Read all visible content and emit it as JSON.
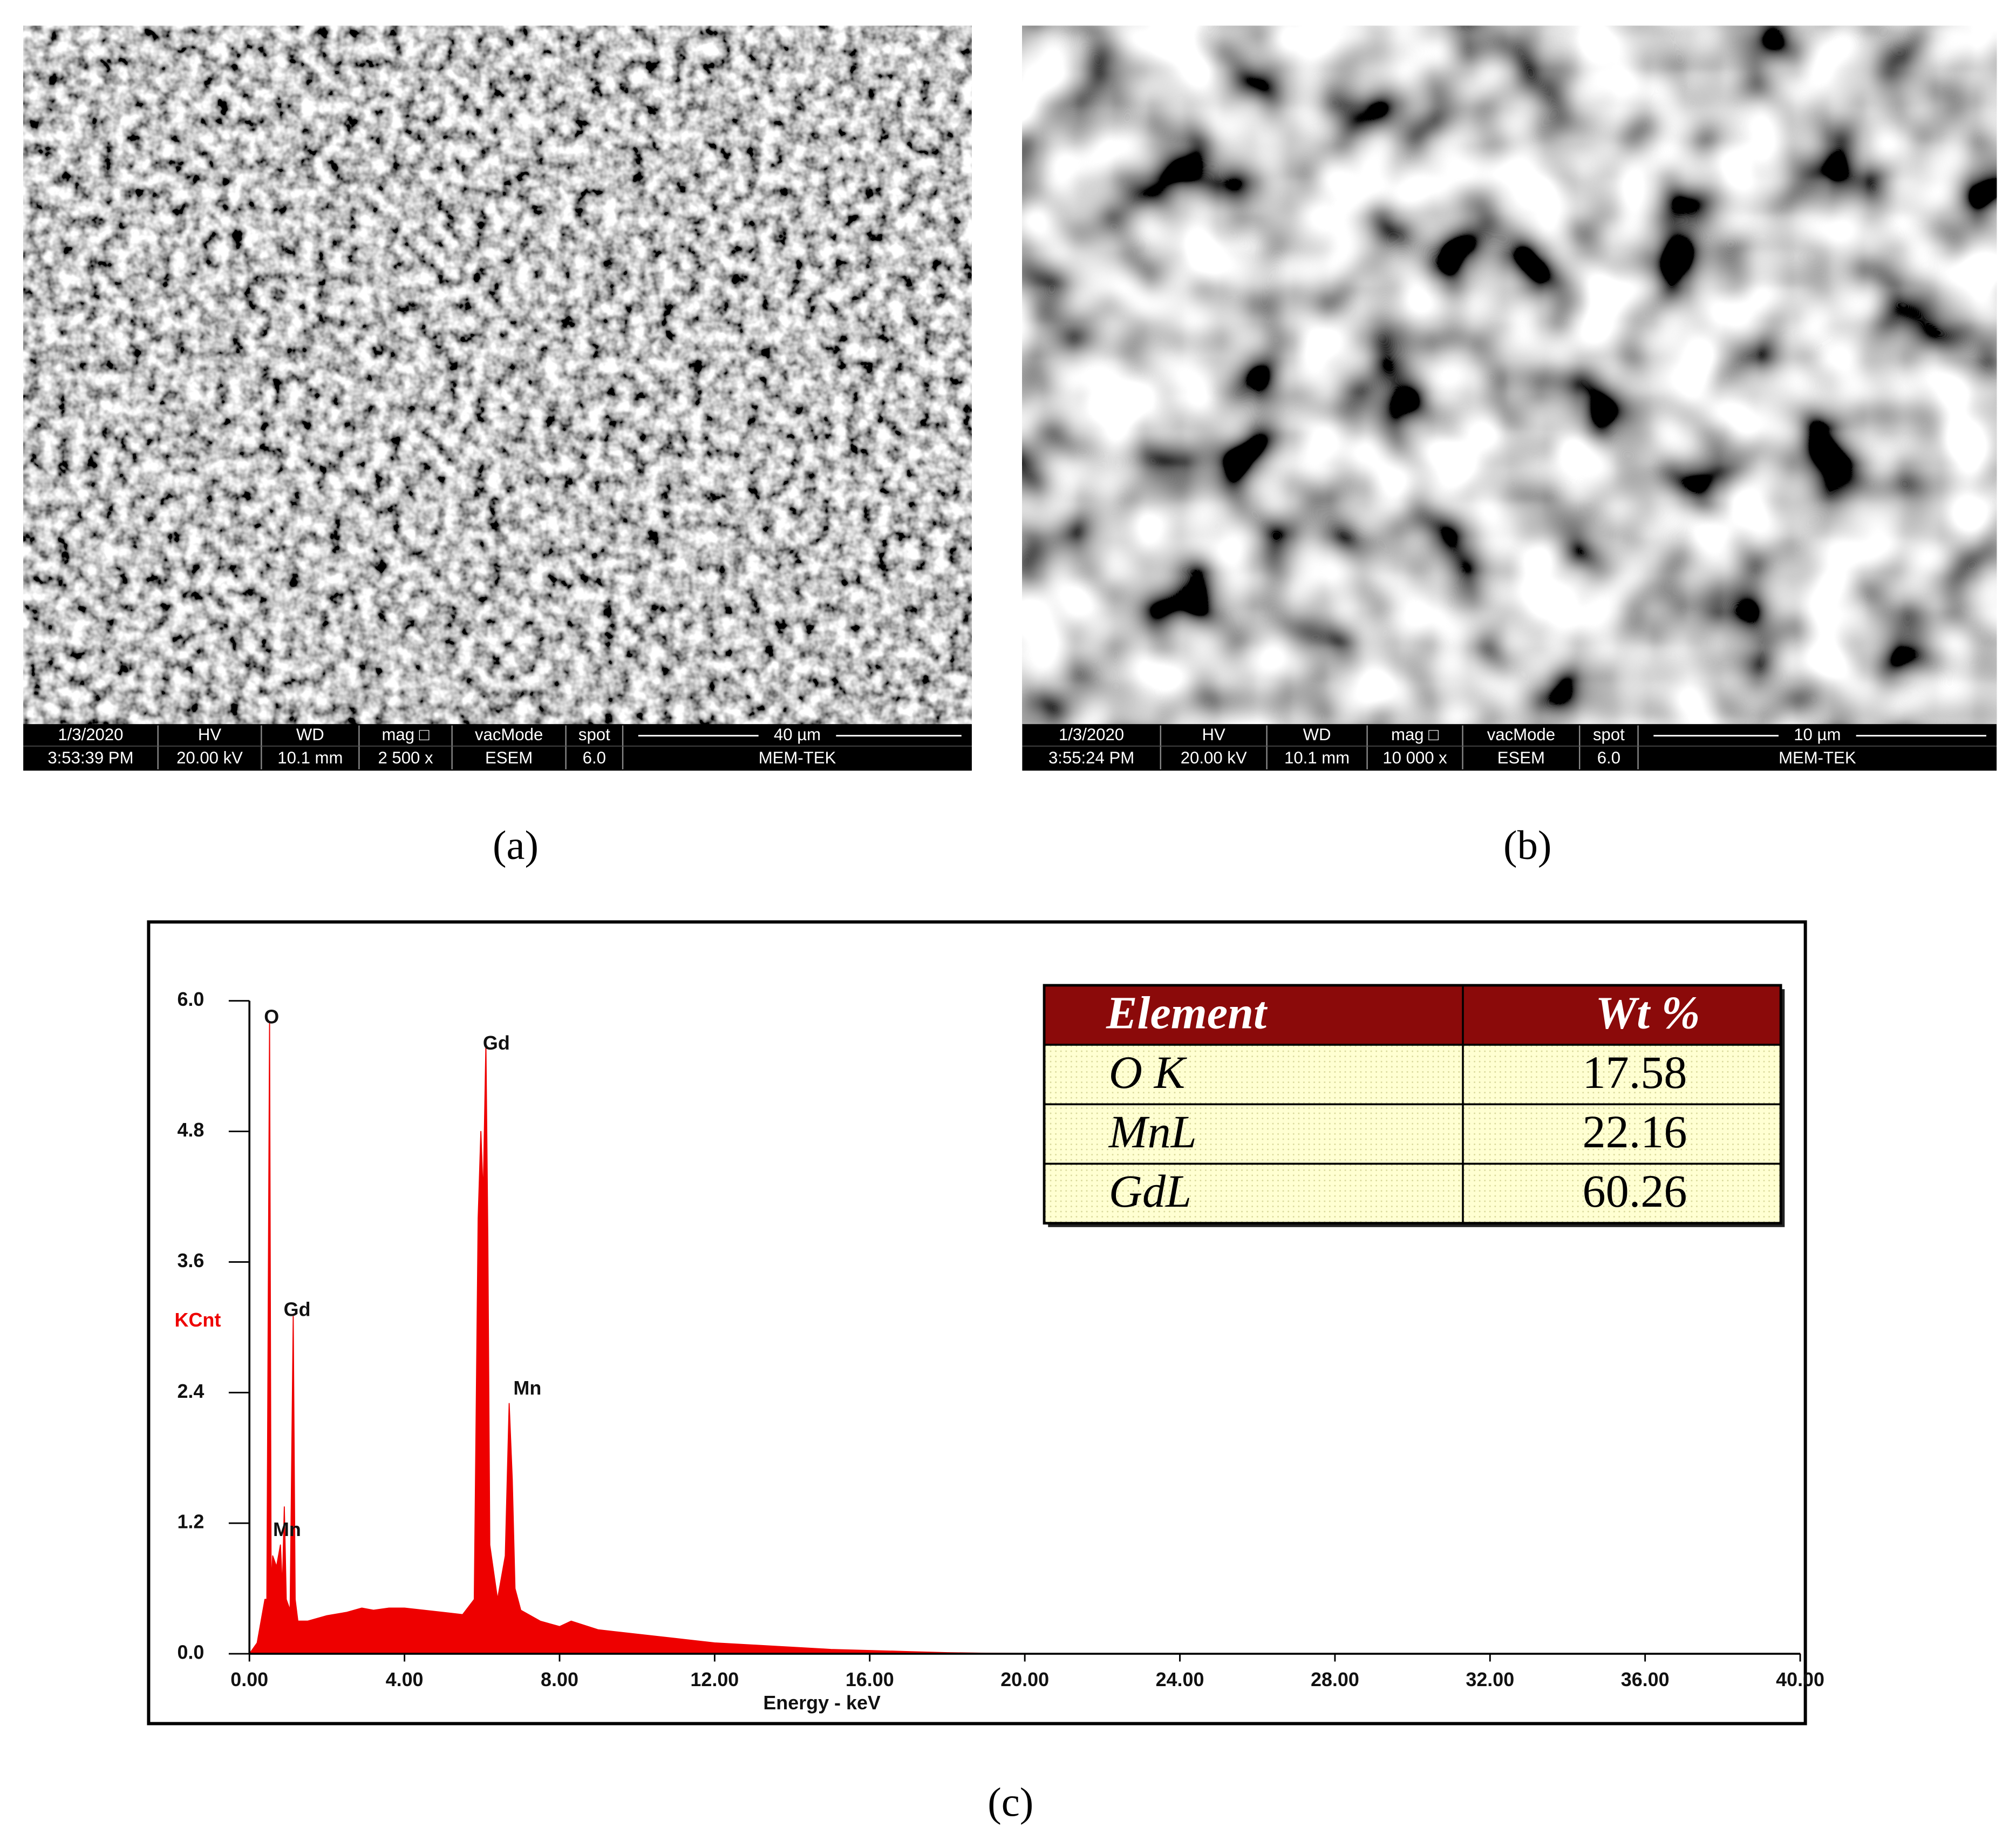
{
  "panels": [
    {
      "label": "(a)",
      "info": {
        "header": [
          "1/3/2020",
          "HV",
          "WD",
          "mag □",
          "vacMode",
          "spot",
          "40 µm"
        ],
        "values": [
          "3:53:39 PM",
          "20.00 kV",
          "10.1 mm",
          "2 500 x",
          "ESEM",
          "6.0",
          "MEM-TEK"
        ]
      }
    },
    {
      "label": "(b)",
      "info": {
        "header": [
          "1/3/2020",
          "HV",
          "WD",
          "mag □",
          "vacMode",
          "spot",
          "10 µm"
        ],
        "values": [
          "3:55:24 PM",
          "20.00 kV",
          "10.1 mm",
          "10 000 x",
          "ESEM",
          "6.0",
          "MEM-TEK"
        ]
      }
    }
  ],
  "chart_data": {
    "type": "area",
    "panel_label": "(c)",
    "x_label": "Energy - keV",
    "y_label": "KCnt",
    "color": "#ee0000",
    "xlim": [
      0,
      40
    ],
    "ylim": [
      0,
      6
    ],
    "xticks": [
      {
        "value": 0,
        "label": "0.00"
      },
      {
        "value": 4,
        "label": "4.00"
      },
      {
        "value": 8,
        "label": "8.00"
      },
      {
        "value": 12,
        "label": "12.00"
      },
      {
        "value": 16,
        "label": "16.00"
      },
      {
        "value": 20,
        "label": "20.00"
      },
      {
        "value": 24,
        "label": "24.00"
      },
      {
        "value": 28,
        "label": "28.00"
      },
      {
        "value": 32,
        "label": "32.00"
      },
      {
        "value": 36,
        "label": "36.00"
      },
      {
        "value": 40,
        "label": "40.00"
      }
    ],
    "yticks": [
      {
        "value": 0,
        "label": "0.0"
      },
      1.2,
      2.4,
      3.6,
      4.8,
      {
        "value": 6,
        "label": "6.0"
      }
    ],
    "x": [
      0.0,
      0.1,
      0.2,
      0.3,
      0.4,
      0.45,
      0.52,
      0.56,
      0.6,
      0.7,
      0.8,
      0.85,
      0.9,
      0.95,
      1.05,
      1.13,
      1.18,
      1.25,
      1.5,
      2.0,
      2.5,
      2.9,
      3.2,
      3.6,
      4.0,
      4.5,
      5.0,
      5.5,
      5.8,
      5.9,
      5.97,
      6.03,
      6.1,
      6.15,
      6.2,
      6.4,
      6.6,
      6.7,
      6.78,
      6.85,
      7.0,
      7.5,
      8.0,
      8.3,
      9.0,
      10.0,
      11.0,
      12.0,
      13.0,
      14.0,
      15.0,
      16.0,
      17.0,
      18.0,
      19.0,
      20.0,
      40.0
    ],
    "series": [
      {
        "name": "spectrum",
        "values": [
          0,
          0.05,
          0.1,
          0.3,
          0.5,
          0.5,
          5.8,
          0.6,
          0.9,
          0.8,
          1.0,
          0.6,
          1.35,
          0.5,
          0.4,
          3.1,
          0.5,
          0.3,
          0.3,
          0.35,
          0.38,
          0.42,
          0.4,
          0.42,
          0.42,
          0.4,
          0.38,
          0.36,
          0.5,
          4.0,
          4.8,
          4.2,
          5.6,
          3.8,
          1.0,
          0.5,
          0.9,
          2.3,
          1.6,
          0.6,
          0.4,
          0.3,
          0.25,
          0.3,
          0.22,
          0.18,
          0.14,
          0.1,
          0.08,
          0.06,
          0.04,
          0.03,
          0.02,
          0.01,
          0.005,
          0.003,
          0
        ]
      }
    ],
    "annotations": [
      {
        "text": "O",
        "x": 0.57,
        "y": 5.84
      },
      {
        "text": "Gd",
        "x": 1.23,
        "y": 3.15
      },
      {
        "text": "Mn",
        "x": 0.97,
        "y": 1.13
      },
      {
        "text": "Gd",
        "x": 6.37,
        "y": 5.6
      },
      {
        "text": "Mn",
        "x": 7.17,
        "y": 2.43
      }
    ]
  },
  "table": {
    "header": [
      "Element",
      "Wt %"
    ],
    "rows": [
      [
        "O K",
        "17.58"
      ],
      [
        "MnL",
        "22.16"
      ],
      [
        "GdL",
        "60.26"
      ]
    ]
  }
}
